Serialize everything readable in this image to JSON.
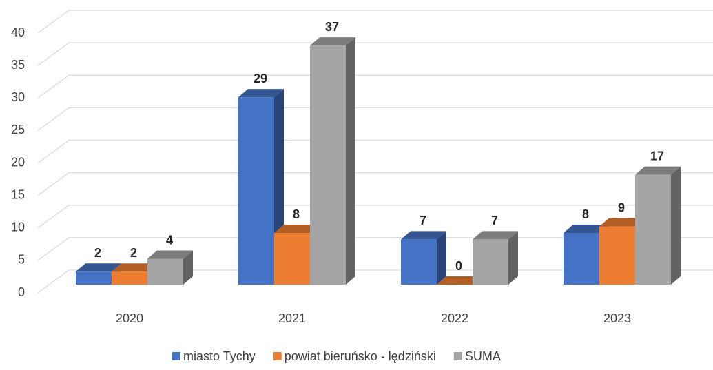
{
  "chart_data": {
    "type": "bar3d",
    "categories": [
      "2020",
      "2021",
      "2022",
      "2023"
    ],
    "series": [
      {
        "name": "miasto Tychy",
        "color": "#4472c4",
        "values": [
          2,
          29,
          7,
          8
        ]
      },
      {
        "name": "powiat bieruńsko - lędziński",
        "color": "#ed7d31",
        "values": [
          2,
          8,
          0,
          9
        ]
      },
      {
        "name": "SUMA",
        "color": "#a5a5a5",
        "values": [
          4,
          37,
          7,
          17
        ]
      }
    ],
    "ylim": [
      0,
      40
    ],
    "yticks": [
      0,
      5,
      10,
      15,
      20,
      25,
      30,
      35,
      40
    ],
    "grid": true,
    "legend": "bottom"
  }
}
